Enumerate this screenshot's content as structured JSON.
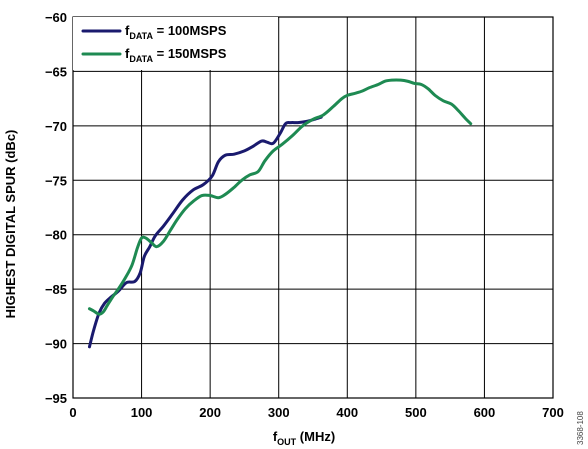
{
  "chart_data": {
    "type": "line",
    "xlabel_main": "f",
    "xlabel_sub": "OUT",
    "xlabel_rest": " (MHz)",
    "ylabel": "HIGHEST DIGITAL SPUR (dBc)",
    "xlim": [
      0,
      700
    ],
    "ylim": [
      -95,
      -60
    ],
    "xticks": [
      0,
      100,
      200,
      300,
      400,
      500,
      600,
      700
    ],
    "yticks": [
      -60,
      -65,
      -70,
      -75,
      -80,
      -85,
      -90,
      -95
    ],
    "xtick_labels": [
      "0",
      "100",
      "200",
      "300",
      "400",
      "500",
      "600",
      "700"
    ],
    "ytick_labels": [
      "−60",
      "−65",
      "−70",
      "−75",
      "−80",
      "−85",
      "−90",
      "−95"
    ],
    "grid": true,
    "legend_position": "top-left",
    "series": [
      {
        "name_main": "f",
        "name_sub": "DATA",
        "name_rest": " = 100MSPS",
        "color": "#1a1a6e",
        "x": [
          24,
          30,
          38,
          46,
          56,
          66,
          78,
          90,
          98,
          104,
          112,
          120,
          132,
          145,
          160,
          175,
          190,
          203,
          212,
          222,
          235,
          250,
          262,
          275,
          283,
          292,
          302,
          310,
          318,
          328,
          340,
          352,
          362
        ],
        "y": [
          -90.3,
          -88.8,
          -87.2,
          -86.3,
          -85.7,
          -85.2,
          -84.4,
          -84.3,
          -83.5,
          -82.0,
          -81.1,
          -80.1,
          -79.2,
          -78.1,
          -76.8,
          -75.9,
          -75.4,
          -74.6,
          -73.3,
          -72.7,
          -72.6,
          -72.3,
          -71.9,
          -71.4,
          -71.5,
          -71.6,
          -70.7,
          -69.8,
          -69.7,
          -69.7,
          -69.6,
          -69.4,
          -69.2
        ]
      },
      {
        "name_main": "f",
        "name_sub": "DATA",
        "name_rest": " = 150MSPS",
        "color": "#1e8a52",
        "x": [
          24,
          30,
          38,
          44,
          50,
          58,
          66,
          76,
          86,
          94,
          100,
          106,
          114,
          122,
          132,
          142,
          152,
          164,
          176,
          188,
          200,
          212,
          222,
          234,
          246,
          258,
          270,
          280,
          292,
          305,
          320,
          335,
          350,
          365,
          380,
          392,
          400,
          412,
          422,
          432,
          445,
          455,
          465,
          478,
          488,
          498,
          508,
          518,
          528,
          540,
          552,
          562,
          572,
          580
        ],
        "y": [
          -86.8,
          -87.0,
          -87.3,
          -87.1,
          -86.5,
          -85.7,
          -85.0,
          -84.0,
          -82.8,
          -81.2,
          -80.3,
          -80.3,
          -80.7,
          -81.1,
          -80.6,
          -79.6,
          -78.6,
          -77.6,
          -76.9,
          -76.4,
          -76.4,
          -76.6,
          -76.3,
          -75.7,
          -75.0,
          -74.5,
          -74.2,
          -73.2,
          -72.3,
          -71.7,
          -70.9,
          -70.0,
          -69.4,
          -69.0,
          -68.2,
          -67.5,
          -67.2,
          -67.0,
          -66.8,
          -66.5,
          -66.2,
          -65.9,
          -65.8,
          -65.8,
          -65.9,
          -66.1,
          -66.2,
          -66.6,
          -67.2,
          -67.7,
          -68.0,
          -68.6,
          -69.3,
          -69.8
        ]
      }
    ]
  },
  "side_note": "3368-108"
}
